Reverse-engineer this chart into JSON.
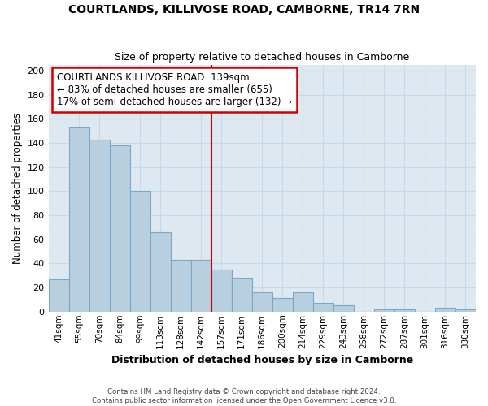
{
  "title": "COURTLANDS, KILLIVOSE ROAD, CAMBORNE, TR14 7RN",
  "subtitle": "Size of property relative to detached houses in Camborne",
  "xlabel": "Distribution of detached houses by size in Camborne",
  "ylabel": "Number of detached properties",
  "categories": [
    "41sqm",
    "55sqm",
    "70sqm",
    "84sqm",
    "99sqm",
    "113sqm",
    "128sqm",
    "142sqm",
    "157sqm",
    "171sqm",
    "186sqm",
    "200sqm",
    "214sqm",
    "229sqm",
    "243sqm",
    "258sqm",
    "272sqm",
    "287sqm",
    "301sqm",
    "316sqm",
    "330sqm"
  ],
  "values": [
    27,
    153,
    143,
    138,
    100,
    66,
    43,
    43,
    35,
    28,
    16,
    11,
    16,
    7,
    5,
    0,
    2,
    2,
    0,
    3,
    2
  ],
  "bar_color": "#b8cfe0",
  "bar_edge_color": "#7ba8c8",
  "vline_index": 7,
  "vline_color": "#cc0000",
  "ylim": [
    0,
    205
  ],
  "yticks": [
    0,
    20,
    40,
    60,
    80,
    100,
    120,
    140,
    160,
    180,
    200
  ],
  "annotation_title": "COURTLANDS KILLIVOSE ROAD: 139sqm",
  "annotation_line1": "← 83% of detached houses are smaller (655)",
  "annotation_line2": "17% of semi-detached houses are larger (132) →",
  "annotation_box_color": "#ffffff",
  "annotation_box_edge": "#cc0000",
  "footer1": "Contains HM Land Registry data © Crown copyright and database right 2024.",
  "footer2": "Contains public sector information licensed under the Open Government Licence v3.0.",
  "grid_color": "#c8d8e8",
  "plot_bg_color": "#dde8f0",
  "background_color": "#ffffff"
}
